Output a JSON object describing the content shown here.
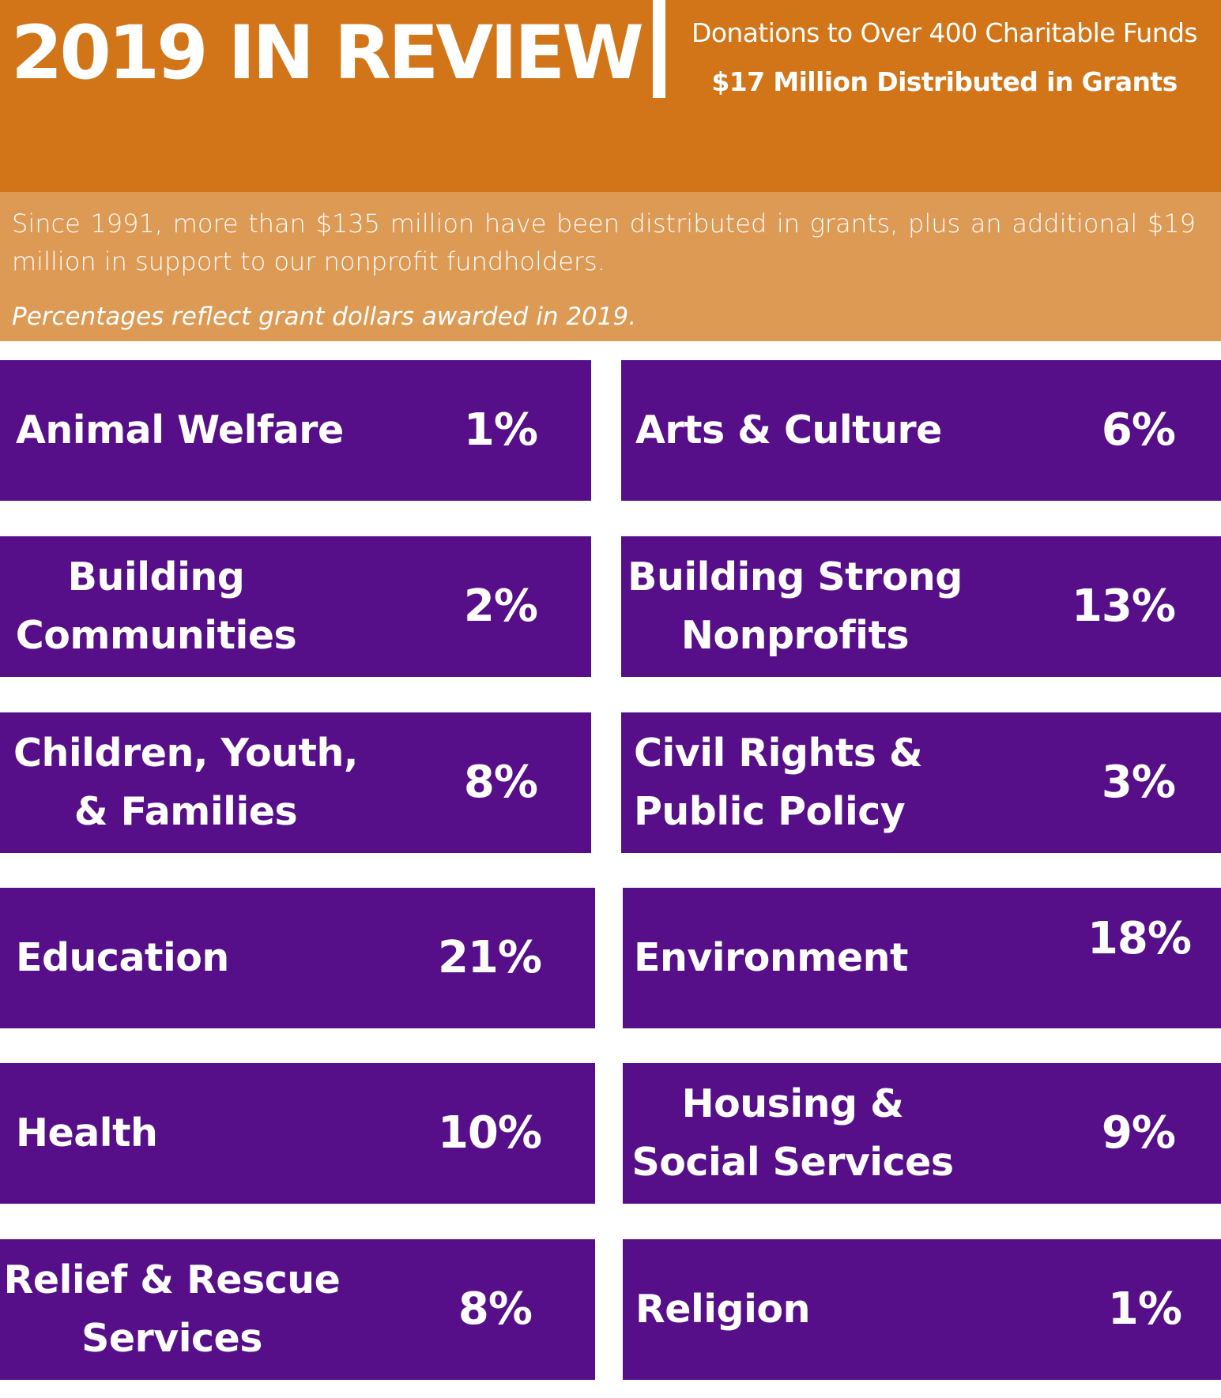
{
  "header": {
    "title": "2019 IN REVIEW",
    "subtitle_1": "Donations to Over 400 Charitable Funds",
    "subtitle_2": "$17 Million Distributed in Grants",
    "background_color": "#d27519"
  },
  "intro": {
    "text": "Since 1991, more than $135 million have been distributed in grants, plus an additional $19 million in support to our nonprofit fundholders.",
    "note": "Percentages reflect grant dollars awarded in 2019.",
    "background_color": "#dd9a55"
  },
  "categories": [
    {
      "label_line1": "Animal Welfare",
      "label_line2": "",
      "percent": "1%"
    },
    {
      "label_line1": "Arts & Culture",
      "label_line2": "",
      "percent": "6%"
    },
    {
      "label_line1": "Building",
      "label_line2": "Communities",
      "percent": "2%"
    },
    {
      "label_line1": "Building Strong",
      "label_line2": "Nonprofits",
      "percent": "13%"
    },
    {
      "label_line1": "Children, Youth,",
      "label_line2": "& Families",
      "percent": "8%"
    },
    {
      "label_line1": "Civil Rights &",
      "label_line2": "Public Policy",
      "percent": "3%"
    },
    {
      "label_line1": "Education",
      "label_line2": "",
      "percent": "21%"
    },
    {
      "label_line1": "Environment",
      "label_line2": "",
      "percent": "18%"
    },
    {
      "label_line1": "Health",
      "label_line2": "",
      "percent": "10%"
    },
    {
      "label_line1": "Housing &",
      "label_line2": "Social Services",
      "percent": "9%"
    },
    {
      "label_line1": "Relief & Rescue",
      "label_line2": "Services",
      "percent": "8%"
    },
    {
      "label_line1": "Religion",
      "label_line2": "",
      "percent": "1%"
    }
  ],
  "tile_color": "#560f88"
}
